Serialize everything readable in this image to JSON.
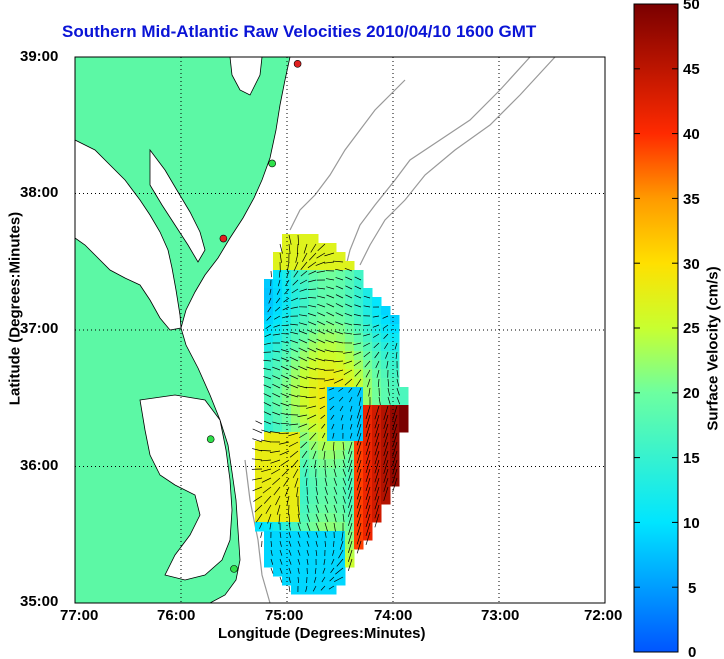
{
  "title": "Southern Mid-Atlantic Raw Velocities 2010/04/10 1600 GMT",
  "axes": {
    "xlabel": "Longitude (Degrees:Minutes)",
    "ylabel": "Latitude (Degrees:Minutes)",
    "x_ticks": [
      "77:00",
      "76:00",
      "75:00",
      "74:00",
      "73:00",
      "72:00"
    ],
    "y_ticks": [
      "39:00",
      "38:00",
      "37:00",
      "36:00",
      "35:00"
    ],
    "x_range_deg_west": [
      77,
      72
    ],
    "y_range_deg_north": [
      35,
      39
    ],
    "grid": "dotted"
  },
  "colorbar": {
    "label": "Surface Velocity (cm/s)",
    "ticks": [
      "50",
      "45",
      "40",
      "35",
      "30",
      "25",
      "20",
      "15",
      "10",
      "5",
      "0"
    ],
    "range": [
      0,
      50
    ],
    "colormap": "jet"
  },
  "colors": {
    "land": "#5cf8a5",
    "title": "#0a14d6",
    "bathymetry": "#999999",
    "station_green": "#2fe04a",
    "station_red": "#e02020"
  },
  "stations": [
    {
      "lon": 74.9,
      "lat": 38.95,
      "status": "red"
    },
    {
      "lon": 75.14,
      "lat": 38.22,
      "status": "green"
    },
    {
      "lon": 75.6,
      "lat": 37.67,
      "status": "red"
    },
    {
      "lon": 75.72,
      "lat": 36.2,
      "status": "green"
    },
    {
      "lon": 75.5,
      "lat": 35.25,
      "status": "green"
    }
  ]
}
